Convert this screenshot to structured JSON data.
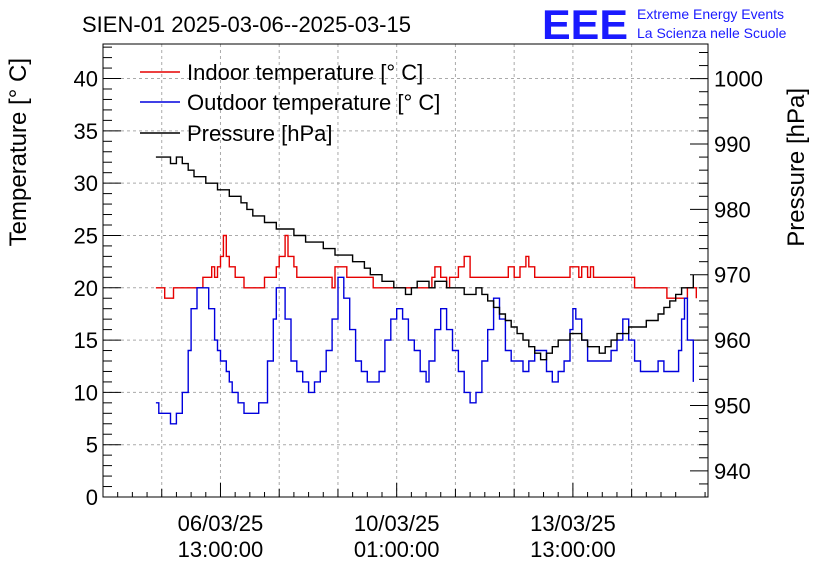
{
  "chart_data": {
    "type": "line",
    "title": "SIEN-01 2025-03-06--2025-03-15",
    "logo": {
      "text": "EEE",
      "line1": "Extreme Energy Events",
      "line2": "La Scienza nelle Scuole"
    },
    "xaxis": {
      "tick_labels": [
        {
          "x": 4.0,
          "date": "06/03/25",
          "time": "13:00:00"
        },
        {
          "x": 10.0,
          "date": "10/03/25",
          "time": "01:00:00"
        },
        {
          "x": 16.0,
          "date": "13/03/25",
          "time": "13:00:00"
        }
      ],
      "xlim": [
        0.0,
        20.6
      ]
    },
    "ylabel_left": "Temperature [° C]",
    "ylabel_right": "Pressure [hPa]",
    "ylim_left": [
      0,
      43.3
    ],
    "ylim_right": [
      936,
      1005.3
    ],
    "left_ticks": [
      0,
      5,
      10,
      15,
      20,
      25,
      30,
      35,
      40
    ],
    "right_ticks": [
      940,
      950,
      960,
      970,
      980,
      990,
      1000
    ],
    "legend_position": "top-left",
    "colors": {
      "indoor": "#e60000",
      "outdoor": "#0000dd",
      "pressure": "#000000",
      "logo": "#1a1aff"
    },
    "series": [
      {
        "name": "Indoor temperature [° C]",
        "axis": "left",
        "x": [
          1.8,
          1.9,
          2.1,
          2.3,
          2.4,
          2.6,
          2.9,
          3.0,
          3.2,
          3.4,
          3.5,
          3.7,
          3.8,
          3.9,
          4.0,
          4.1,
          4.2,
          4.3,
          4.5,
          4.7,
          4.8,
          5.0,
          5.2,
          5.5,
          5.7,
          5.9,
          6.0,
          6.2,
          6.3,
          6.5,
          6.6,
          6.8,
          7.0,
          7.1,
          7.3,
          7.6,
          7.8,
          7.9,
          8.1,
          8.3,
          8.6,
          8.9,
          9.2,
          9.5,
          9.8,
          10.1,
          10.3,
          10.5,
          10.8,
          11.0,
          11.2,
          11.3,
          11.5,
          11.7,
          11.8,
          12.0,
          12.1,
          12.3,
          12.5,
          12.9,
          13.3,
          13.6,
          13.8,
          14.0,
          14.2,
          14.4,
          14.5,
          14.7,
          14.9,
          15.1,
          15.3,
          15.6,
          15.9,
          16.1,
          16.2,
          16.3,
          16.4,
          16.5,
          16.6,
          16.7,
          16.9,
          17.2,
          17.5,
          17.8,
          18.1,
          18.4,
          18.6,
          18.8,
          18.9,
          19.0,
          19.2,
          19.4,
          19.6,
          19.7,
          19.9,
          20.0,
          20.2
        ],
        "y": [
          20,
          20,
          19,
          19,
          20,
          20,
          20,
          20,
          20,
          21,
          21,
          22,
          21,
          22,
          23,
          25,
          23,
          22,
          21,
          21,
          20,
          20,
          20,
          21,
          21,
          22,
          23,
          25,
          23,
          22,
          21,
          21,
          21,
          21,
          21,
          21,
          20,
          22,
          22,
          21,
          21,
          21,
          20,
          20,
          20,
          20,
          20,
          20,
          20,
          20,
          21,
          22,
          21,
          20,
          21,
          21,
          22,
          23,
          21,
          21,
          21,
          21,
          22,
          21,
          22,
          23,
          22,
          21,
          21,
          21,
          21,
          21,
          22,
          22,
          21,
          22,
          22,
          21,
          22,
          21,
          21,
          21,
          21,
          21,
          20,
          20,
          20,
          20,
          20,
          20,
          19,
          19,
          19,
          19,
          20,
          20,
          19
        ]
      },
      {
        "name": "Outdoor temperature [° C]",
        "axis": "left",
        "x": [
          1.8,
          1.9,
          2.1,
          2.3,
          2.4,
          2.5,
          2.7,
          2.9,
          3.0,
          3.2,
          3.4,
          3.6,
          3.8,
          3.9,
          4.0,
          4.2,
          4.3,
          4.4,
          4.6,
          4.8,
          5.0,
          5.3,
          5.6,
          5.8,
          5.9,
          6.1,
          6.2,
          6.4,
          6.6,
          6.8,
          7.0,
          7.2,
          7.4,
          7.6,
          7.8,
          8.0,
          8.2,
          8.4,
          8.6,
          8.8,
          9.0,
          9.2,
          9.4,
          9.6,
          9.8,
          10.0,
          10.2,
          10.4,
          10.6,
          10.8,
          11.0,
          11.1,
          11.3,
          11.5,
          11.7,
          11.9,
          12.1,
          12.3,
          12.5,
          12.7,
          12.9,
          13.1,
          13.3,
          13.5,
          13.7,
          13.9,
          14.1,
          14.3,
          14.5,
          14.7,
          14.9,
          15.1,
          15.3,
          15.5,
          15.7,
          15.9,
          16.0,
          16.1,
          16.3,
          16.5,
          16.7,
          16.9,
          17.1,
          17.3,
          17.5,
          17.7,
          17.9,
          18.1,
          18.3,
          18.5,
          18.7,
          18.9,
          19.1,
          19.3,
          19.5,
          19.6,
          19.7,
          19.8,
          19.9,
          20.1
        ],
        "y": [
          9,
          8,
          8,
          7,
          7,
          8,
          10,
          14,
          18,
          20,
          20,
          18,
          15,
          14,
          13,
          12,
          11,
          10,
          9,
          8,
          8,
          9,
          13,
          17,
          20,
          20,
          17,
          13,
          12,
          11,
          10,
          11,
          12,
          14,
          17,
          21,
          19,
          16,
          13,
          12,
          11,
          11,
          12,
          15,
          17,
          18,
          17,
          15,
          14,
          12,
          11,
          13,
          16,
          18,
          16,
          14,
          12,
          10,
          9,
          10,
          13,
          16,
          19,
          17,
          14,
          13,
          13,
          12,
          13,
          14,
          14,
          12,
          11,
          12,
          13,
          16,
          18,
          17,
          15,
          13,
          13,
          13,
          13,
          14,
          15,
          17,
          15,
          13,
          12,
          12,
          12,
          13,
          12,
          12,
          12,
          14,
          17,
          19,
          15,
          11
        ]
      },
      {
        "name": "Pressure [hPa]",
        "axis": "right",
        "x": [
          1.8,
          2.0,
          2.3,
          2.5,
          2.7,
          2.9,
          3.1,
          3.3,
          3.5,
          3.7,
          3.9,
          4.1,
          4.3,
          4.5,
          4.7,
          4.9,
          5.1,
          5.3,
          5.5,
          5.7,
          5.9,
          6.1,
          6.3,
          6.5,
          6.7,
          6.9,
          7.1,
          7.3,
          7.5,
          7.7,
          7.9,
          8.1,
          8.3,
          8.5,
          8.7,
          8.9,
          9.1,
          9.3,
          9.5,
          9.7,
          9.9,
          10.1,
          10.3,
          10.5,
          10.7,
          10.9,
          11.1,
          11.3,
          11.5,
          11.7,
          11.9,
          12.1,
          12.3,
          12.5,
          12.7,
          12.9,
          13.1,
          13.3,
          13.5,
          13.7,
          13.9,
          14.1,
          14.3,
          14.5,
          14.7,
          14.9,
          15.1,
          15.3,
          15.5,
          15.7,
          15.9,
          16.1,
          16.3,
          16.5,
          16.7,
          16.9,
          17.1,
          17.3,
          17.5,
          17.7,
          17.9,
          18.1,
          18.3,
          18.5,
          18.7,
          18.9,
          19.1,
          19.3,
          19.5,
          19.7,
          19.9,
          20.1
        ],
        "y": [
          988,
          988,
          987,
          988,
          987,
          986,
          985,
          985,
          984,
          984,
          983,
          983,
          982,
          982,
          981,
          980,
          979,
          979,
          978,
          978,
          977,
          977,
          977,
          976,
          976,
          975,
          975,
          975,
          974,
          974,
          973,
          973,
          973,
          972,
          972,
          971,
          970,
          970,
          969,
          969,
          968,
          968,
          967,
          968,
          969,
          969,
          968,
          969,
          969,
          968,
          968,
          968,
          967,
          967,
          968,
          967,
          966,
          965,
          964,
          963,
          962,
          961,
          960,
          959,
          958,
          957,
          958,
          959,
          960,
          960,
          961,
          961,
          960,
          959,
          959,
          958,
          959,
          960,
          961,
          961,
          962,
          962,
          962,
          963,
          963,
          964,
          965,
          966,
          967,
          968,
          968,
          970
        ]
      }
    ]
  }
}
